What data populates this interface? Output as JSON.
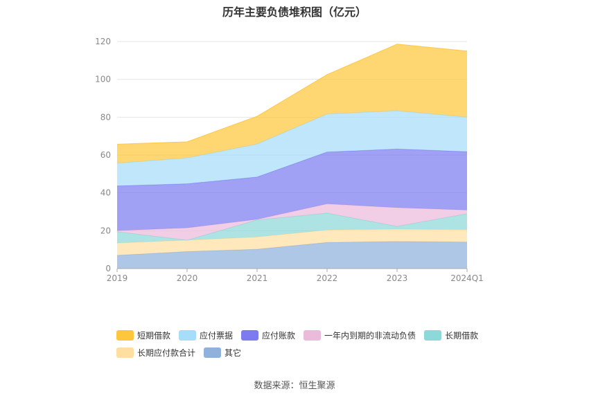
{
  "chart_data": {
    "type": "area",
    "title": "历年主要负债堆积图（亿元）",
    "x": [
      "2019",
      "2020",
      "2021",
      "2022",
      "2023",
      "2024Q1"
    ],
    "ylim": [
      0,
      120
    ],
    "yticks": [
      0,
      20,
      40,
      60,
      80,
      100,
      120
    ],
    "grid": true,
    "legend_position": "bottom",
    "series": [
      {
        "name": "其它",
        "color": "#8fb1dc",
        "values": [
          7.0,
          9.0,
          10.2,
          13.8,
          14.3,
          14.0
        ]
      },
      {
        "name": "长期应付款合计",
        "color": "#ffdfa1",
        "values": [
          6.5,
          6.0,
          6.5,
          6.6,
          6.5,
          6.6
        ]
      },
      {
        "name": "长期借款",
        "color": "#8dd8d8",
        "values": [
          6.0,
          0.0,
          9.0,
          8.9,
          1.5,
          8.4
        ]
      },
      {
        "name": "一年内到期的非流动负债",
        "color": "#ebbbdc",
        "values": [
          0.5,
          6.5,
          0.3,
          4.9,
          9.9,
          1.9
        ]
      },
      {
        "name": "应付账款",
        "color": "#7c7cf0",
        "values": [
          23.7,
          23.3,
          22.4,
          27.4,
          31.0,
          30.9
        ]
      },
      {
        "name": "应付票据",
        "color": "#a6ddfa",
        "values": [
          12.0,
          13.7,
          17.4,
          20.1,
          20.2,
          18.2
        ]
      },
      {
        "name": "短期借款",
        "color": "#fec63c",
        "values": [
          10.0,
          8.5,
          14.7,
          20.8,
          35.2,
          35.0
        ]
      }
    ]
  },
  "legend": {
    "rows": [
      [
        {
          "label": "短期借款",
          "color": "#fec63c"
        },
        {
          "label": "应付票据",
          "color": "#a6ddfa"
        },
        {
          "label": "应付账款",
          "color": "#7c7cf0"
        },
        {
          "label": "一年内到期的非流动负债",
          "color": "#ebbbdc"
        },
        {
          "label": "长期借款",
          "color": "#8dd8d8"
        }
      ],
      [
        {
          "label": "长期应付款合计",
          "color": "#ffdfa1"
        },
        {
          "label": "其它",
          "color": "#8fb1dc"
        }
      ]
    ]
  },
  "source": "数据来源：恒生聚源"
}
